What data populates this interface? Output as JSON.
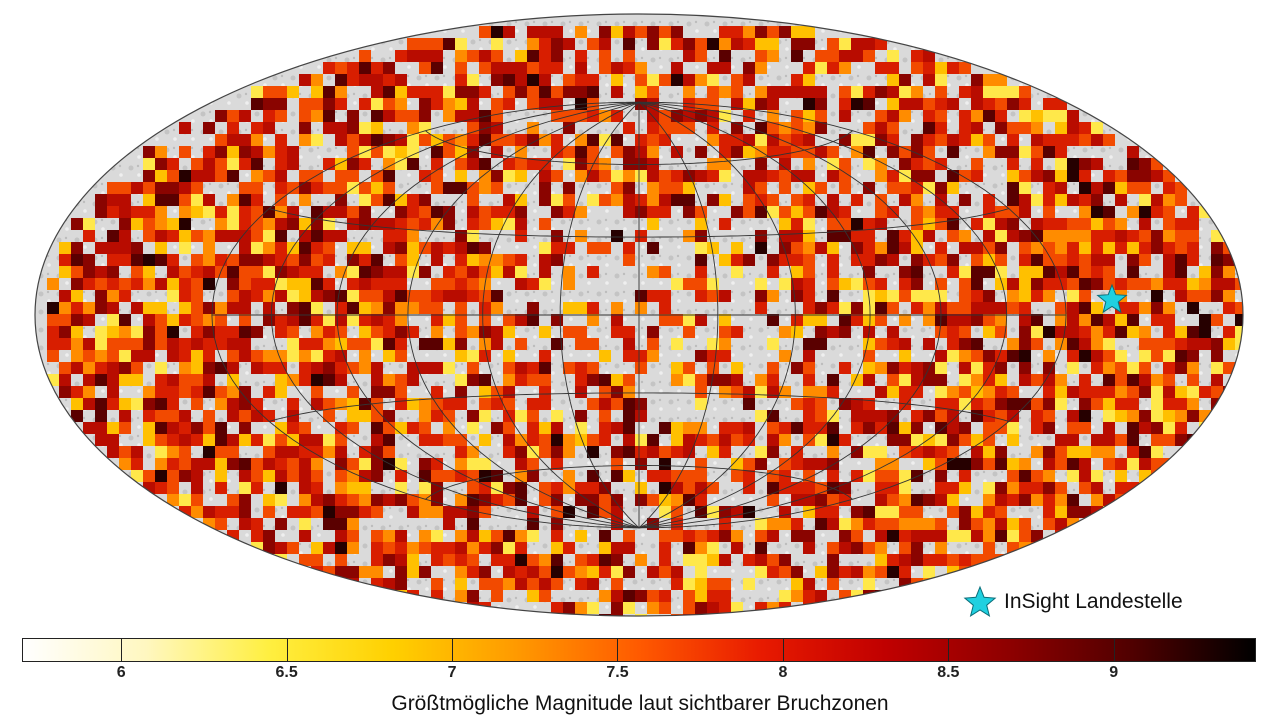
{
  "map": {
    "projection": "hammer-aitoff",
    "graticule": true,
    "base_color": "#d6d6d6",
    "cell_colors": [
      "#fffde0",
      "#ffe84a",
      "#ffc000",
      "#ff8c00",
      "#f24a00",
      "#d81e00",
      "#b80c00",
      "#8a0400",
      "#5a0000",
      "#260000"
    ]
  },
  "marker": {
    "icon": "star-icon",
    "color": "#20d0e0",
    "label": "InSight Landestelle"
  },
  "colorbar": {
    "min": 5.7,
    "max": 9.43,
    "ticks": [
      "6",
      "6.5",
      "7",
      "7.5",
      "8",
      "8.5",
      "9"
    ],
    "tick_values": [
      6,
      6.5,
      7,
      7.5,
      8,
      8.5,
      9
    ],
    "colors": [
      "#ffffff",
      "#fff7c0",
      "#ffef40",
      "#ffd000",
      "#ff9a00",
      "#ff5a00",
      "#e81a00",
      "#c00000",
      "#8e0000",
      "#500000",
      "#000000"
    ],
    "title": "Größtmögliche Magnitude laut sichtbarer Bruchzonen"
  }
}
